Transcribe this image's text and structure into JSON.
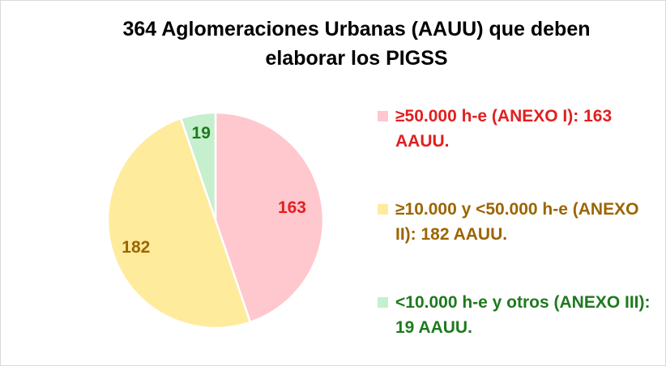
{
  "chart_data": {
    "type": "pie",
    "title": "364 Aglomeraciones Urbanas (AAUU) que deben\nelaborar los PIGSS",
    "slices": [
      {
        "label": "≥50.000 h-e (ANEXO I): 163 AAUU.",
        "value": 163,
        "data_label": "163",
        "color": "#FFC7CE",
        "text_color": "#E0201F"
      },
      {
        "label": "≥10.000 y <50.000 h-e (ANEXO II): 182 AAUU.",
        "value": 182,
        "data_label": "182",
        "color": "#FFEB9C",
        "text_color": "#9C6500"
      },
      {
        "label": "<10.000 h-e y otros (ANEXO III): 19 AAUU.",
        "value": 19,
        "data_label": "19",
        "color": "#C6EFCE",
        "text_color": "#1E7A1E"
      }
    ],
    "legend_position": "right"
  }
}
